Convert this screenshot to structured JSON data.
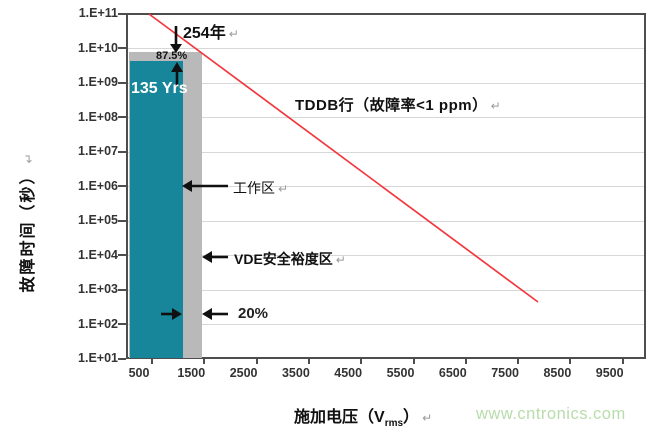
{
  "marks": {
    "return": "↵"
  },
  "watermark": {
    "text": "www.cntronics.com",
    "color": "#b8dcab"
  },
  "colors": {
    "working_bar_teal": "#18869a",
    "margin_band_gray": "#b9b9b9",
    "tddb_line_red": "#f2383e",
    "gridline": "#d7d7d7",
    "plot_border": "#4d4d4d"
  },
  "chart_data": {
    "type": "line",
    "description": "TDDB failure time (log scale, seconds) versus applied RMS voltage, with working-voltage bar, VDE safety-margin band and TDDB failure line",
    "x_axis": {
      "title": "施加电压（Vrms）",
      "title_prefix": "施加电压（V",
      "title_sub": "rms",
      "title_suffix": "）",
      "tick_labels": [
        "500",
        "1500",
        "2500",
        "3500",
        "4500",
        "5500",
        "6500",
        "7500",
        "8500",
        "9500"
      ],
      "range_approx_vrms": [
        250,
        10200
      ],
      "scale": "linear"
    },
    "y_axis": {
      "title": "故障时间（秒）",
      "tick_labels": [
        "1.E+11",
        "1.E+10",
        "1.E+09",
        "1.E+08",
        "1.E+07",
        "1.E+06",
        "1.E+05",
        "1.E+04",
        "1.E+03",
        "1.E+02",
        "1.E+01"
      ],
      "range_seconds": [
        10.0,
        100000000000.0
      ],
      "scale": "log10"
    },
    "grid": "horizontal decade gridlines",
    "legend": "none",
    "series": [
      {
        "name": "TDDB行（故障率<1 ppm）",
        "type": "line",
        "color": "#f2383e",
        "points": [
          {
            "x_vrms": 650,
            "y_seconds": 100000000000.0
          },
          {
            "x_vrms": 8100,
            "y_seconds": 450
          }
        ]
      },
      {
        "name": "工作区",
        "type": "bar",
        "color": "#18869a",
        "x_span_vrms": [
          280,
          1350
        ],
        "top_seconds": 4300000000.0,
        "label": "135 Yrs"
      },
      {
        "name": "VDE安全裕度区",
        "type": "bar",
        "color": "#b9b9b9",
        "x_span_vrms": [
          280,
          1700
        ],
        "top_seconds": 8000000000.0,
        "label": "254年",
        "note": "20% voltage margin beyond working region; top marked 87.5%"
      }
    ],
    "annotations": {
      "years_254": "254年",
      "percent_87_5": "87.5%",
      "life_135": "135 Yrs",
      "tddb_line_label": "TDDB行（故障率<1 ppm）",
      "working_region": "工作区",
      "vde_margin": "VDE安全裕度区",
      "percent_20": "20%"
    }
  }
}
